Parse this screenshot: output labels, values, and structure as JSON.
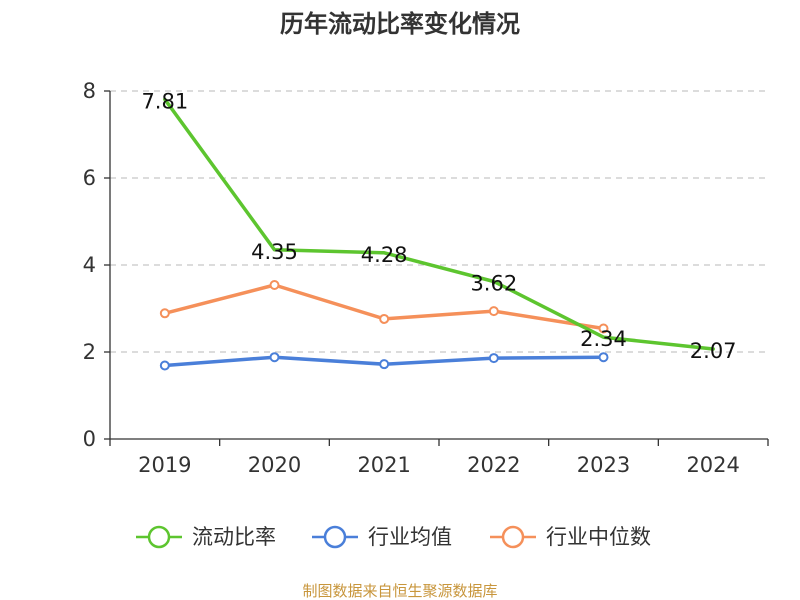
{
  "chart_data": {
    "type": "line",
    "title": "历年流动比率变化情况",
    "categories": [
      "2019",
      "2020",
      "2021",
      "2022",
      "2023",
      "2024"
    ],
    "ylim": [
      0,
      8
    ],
    "yticks": [
      0,
      2,
      4,
      6,
      8
    ],
    "grid": true,
    "legend_position": "bottom",
    "series": [
      {
        "name": "流动比率",
        "color": "#5dc52f",
        "values": [
          7.81,
          4.35,
          4.28,
          3.62,
          2.34,
          2.07
        ],
        "labels": [
          "7.81",
          "4.35",
          "4.28",
          "3.62",
          "2.34",
          "2.07"
        ],
        "show_labels": true,
        "show_markers": false
      },
      {
        "name": "行业均值",
        "color": "#4a7fd9",
        "values": [
          1.69,
          1.88,
          1.72,
          1.86,
          1.88,
          null
        ],
        "show_labels": false,
        "show_markers": true
      },
      {
        "name": "行业中位数",
        "color": "#f5905a",
        "values": [
          2.89,
          3.54,
          2.76,
          2.94,
          2.54,
          null
        ],
        "show_labels": false,
        "show_markers": true
      }
    ],
    "source": "制图数据来自恒生聚源数据库"
  }
}
